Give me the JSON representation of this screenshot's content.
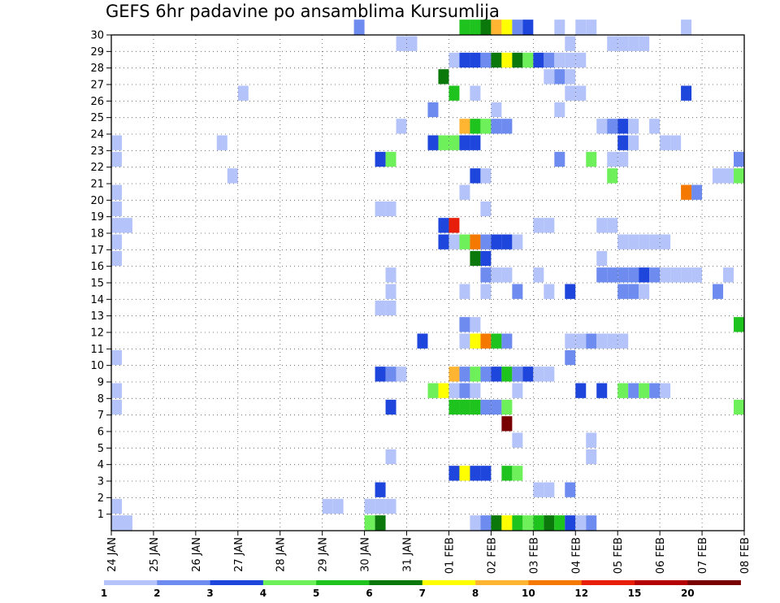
{
  "title": "GEFS 6hr padavine po ansamblima Kursumlija",
  "chart_data": {
    "type": "heatmap",
    "title": "GEFS 6hr padavine po ansamblima Kursumlija",
    "xlabel": "",
    "ylabel": "",
    "x_tick_labels": [
      "24 JAN",
      "25 JAN",
      "26 JAN",
      "27 JAN",
      "28 JAN",
      "29 JAN",
      "30 JAN",
      "31 JAN",
      "01 FEB",
      "02 FEB",
      "03 FEB",
      "04 FEB",
      "05 FEB",
      "06 FEB",
      "07 FEB",
      "08 FEB"
    ],
    "x_range_days": [
      0,
      15
    ],
    "x_step_days": 0.25,
    "y_tick_labels": [
      "1",
      "2",
      "3",
      "4",
      "5",
      "6",
      "7",
      "8",
      "9",
      "10",
      "11",
      "12",
      "13",
      "14",
      "15",
      "16",
      "17",
      "18",
      "19",
      "20",
      "21",
      "22",
      "23",
      "24",
      "25",
      "26",
      "27",
      "28",
      "29",
      "30"
    ],
    "y_range": [
      0,
      30
    ],
    "grid": true,
    "colorbar": {
      "bounds": [
        1,
        2,
        3,
        4,
        5,
        6,
        7,
        8,
        10,
        12,
        15,
        20
      ],
      "labels": [
        "1",
        "2",
        "3",
        "4",
        "5",
        "6",
        "7",
        "8",
        "10",
        "12",
        "15",
        "20"
      ],
      "colors": [
        "#b4c3fa",
        "#6e8cf0",
        "#1e46dc",
        "#6ef05a",
        "#1ec31e",
        "#0a780a",
        "#ffff00",
        "#ffb432",
        "#f57800",
        "#e61e0a",
        "#b40000",
        "#780000"
      ]
    },
    "cells": [
      [
        30,
        5.75,
        1
      ],
      [
        30,
        8.25,
        4
      ],
      [
        30,
        8.5,
        4
      ],
      [
        30,
        8.75,
        5
      ],
      [
        30,
        9.0,
        7
      ],
      [
        30,
        9.25,
        6
      ],
      [
        30,
        9.5,
        1
      ],
      [
        30,
        9.75,
        2
      ],
      [
        30,
        10.5,
        0
      ],
      [
        30,
        11.0,
        0
      ],
      [
        30,
        11.25,
        0
      ],
      [
        30,
        13.5,
        0
      ],
      [
        29,
        6.75,
        0
      ],
      [
        29,
        7.0,
        0
      ],
      [
        29,
        10.75,
        0
      ],
      [
        29,
        11.75,
        0
      ],
      [
        29,
        12.0,
        0
      ],
      [
        29,
        12.25,
        0
      ],
      [
        29,
        12.5,
        0
      ],
      [
        28,
        8.0,
        0
      ],
      [
        28,
        8.25,
        2
      ],
      [
        28,
        8.5,
        2
      ],
      [
        28,
        8.75,
        1
      ],
      [
        28,
        9.0,
        5
      ],
      [
        28,
        9.25,
        6
      ],
      [
        28,
        9.5,
        5
      ],
      [
        28,
        9.75,
        3
      ],
      [
        28,
        10.0,
        2
      ],
      [
        28,
        10.25,
        1
      ],
      [
        28,
        10.5,
        0
      ],
      [
        28,
        10.75,
        0
      ],
      [
        28,
        11.0,
        0
      ],
      [
        27,
        7.75,
        5
      ],
      [
        27,
        10.25,
        0
      ],
      [
        27,
        10.5,
        1
      ],
      [
        27,
        10.75,
        0
      ],
      [
        26,
        3.0,
        0
      ],
      [
        26,
        8.0,
        4
      ],
      [
        26,
        8.5,
        0
      ],
      [
        26,
        10.75,
        0
      ],
      [
        26,
        11.0,
        0
      ],
      [
        26,
        13.5,
        2
      ],
      [
        25,
        7.5,
        1
      ],
      [
        25,
        9.0,
        0
      ],
      [
        25,
        10.5,
        0
      ],
      [
        24,
        6.75,
        0
      ],
      [
        24,
        8.25,
        7
      ],
      [
        24,
        8.5,
        4
      ],
      [
        24,
        8.75,
        3
      ],
      [
        24,
        9.0,
        1
      ],
      [
        24,
        9.25,
        1
      ],
      [
        24,
        11.5,
        0
      ],
      [
        24,
        11.75,
        1
      ],
      [
        24,
        12.0,
        2
      ],
      [
        24,
        12.25,
        0
      ],
      [
        24,
        12.75,
        0
      ],
      [
        23,
        0.0,
        0
      ],
      [
        23,
        2.5,
        0
      ],
      [
        23,
        7.5,
        2
      ],
      [
        23,
        7.75,
        3
      ],
      [
        23,
        8.0,
        3
      ],
      [
        23,
        8.25,
        2
      ],
      [
        23,
        8.5,
        2
      ],
      [
        23,
        12.0,
        2
      ],
      [
        23,
        12.25,
        0
      ],
      [
        23,
        13.0,
        0
      ],
      [
        23,
        13.25,
        0
      ],
      [
        22,
        0.0,
        0
      ],
      [
        22,
        6.25,
        2
      ],
      [
        22,
        6.5,
        3
      ],
      [
        22,
        10.5,
        1
      ],
      [
        22,
        11.25,
        3
      ],
      [
        22,
        11.75,
        0
      ],
      [
        22,
        12.0,
        0
      ],
      [
        22,
        14.75,
        1
      ],
      [
        22,
        15.0,
        0
      ],
      [
        21,
        2.75,
        0
      ],
      [
        21,
        8.5,
        2
      ],
      [
        21,
        8.75,
        0
      ],
      [
        21,
        11.75,
        3
      ],
      [
        21,
        14.25,
        0
      ],
      [
        21,
        14.5,
        0
      ],
      [
        21,
        14.75,
        3
      ],
      [
        21,
        15.0,
        2
      ],
      [
        20,
        0.0,
        0
      ],
      [
        20,
        8.25,
        0
      ],
      [
        20,
        13.5,
        8
      ],
      [
        20,
        13.75,
        1
      ],
      [
        19,
        0.0,
        0
      ],
      [
        19,
        6.25,
        0
      ],
      [
        19,
        6.5,
        0
      ],
      [
        19,
        8.75,
        0
      ],
      [
        18,
        0.0,
        0
      ],
      [
        18,
        0.25,
        0
      ],
      [
        18,
        7.75,
        2
      ],
      [
        18,
        8.0,
        9
      ],
      [
        18,
        10.0,
        0
      ],
      [
        18,
        10.25,
        0
      ],
      [
        18,
        11.5,
        0
      ],
      [
        18,
        11.75,
        0
      ],
      [
        17,
        0.0,
        0
      ],
      [
        17,
        7.75,
        2
      ],
      [
        17,
        8.0,
        0
      ],
      [
        17,
        8.25,
        3
      ],
      [
        17,
        8.5,
        8
      ],
      [
        17,
        8.75,
        1
      ],
      [
        17,
        9.0,
        2
      ],
      [
        17,
        9.25,
        2
      ],
      [
        17,
        9.5,
        0
      ],
      [
        17,
        12.0,
        0
      ],
      [
        17,
        12.25,
        0
      ],
      [
        17,
        12.5,
        0
      ],
      [
        17,
        12.75,
        0
      ],
      [
        17,
        13.0,
        0
      ],
      [
        17,
        15.0,
        0
      ],
      [
        16,
        0.0,
        0
      ],
      [
        16,
        8.5,
        5
      ],
      [
        16,
        8.75,
        2
      ],
      [
        16,
        11.5,
        0
      ],
      [
        15,
        6.5,
        0
      ],
      [
        15,
        8.75,
        1
      ],
      [
        15,
        9.0,
        0
      ],
      [
        15,
        9.25,
        0
      ],
      [
        15,
        10.0,
        0
      ],
      [
        15,
        11.5,
        1
      ],
      [
        15,
        11.75,
        1
      ],
      [
        15,
        12.0,
        1
      ],
      [
        15,
        12.25,
        1
      ],
      [
        15,
        12.5,
        2
      ],
      [
        15,
        12.75,
        1
      ],
      [
        15,
        13.0,
        0
      ],
      [
        15,
        13.25,
        0
      ],
      [
        15,
        13.5,
        0
      ],
      [
        15,
        13.75,
        0
      ],
      [
        15,
        14.5,
        0
      ],
      [
        14,
        6.5,
        0
      ],
      [
        14,
        8.25,
        0
      ],
      [
        14,
        8.75,
        0
      ],
      [
        14,
        9.5,
        1
      ],
      [
        14,
        10.25,
        0
      ],
      [
        14,
        10.75,
        2
      ],
      [
        14,
        12.0,
        1
      ],
      [
        14,
        12.25,
        1
      ],
      [
        14,
        12.5,
        0
      ],
      [
        14,
        14.25,
        1
      ],
      [
        13,
        6.25,
        0
      ],
      [
        13,
        6.5,
        0
      ],
      [
        12,
        8.25,
        1
      ],
      [
        12,
        8.5,
        0
      ],
      [
        12,
        14.75,
        4
      ],
      [
        12,
        15.0,
        3
      ],
      [
        11,
        7.25,
        2
      ],
      [
        11,
        8.25,
        0
      ],
      [
        11,
        8.5,
        6
      ],
      [
        11,
        8.75,
        8
      ],
      [
        11,
        9.0,
        4
      ],
      [
        11,
        9.25,
        1
      ],
      [
        11,
        10.75,
        0
      ],
      [
        11,
        11.0,
        0
      ],
      [
        11,
        11.25,
        1
      ],
      [
        11,
        11.5,
        0
      ],
      [
        11,
        11.75,
        0
      ],
      [
        11,
        12.0,
        0
      ],
      [
        10,
        0.0,
        0
      ],
      [
        10,
        10.75,
        1
      ],
      [
        9,
        6.25,
        2
      ],
      [
        9,
        6.5,
        1
      ],
      [
        9,
        6.75,
        0
      ],
      [
        9,
        8.0,
        7
      ],
      [
        9,
        8.25,
        1
      ],
      [
        9,
        8.5,
        3
      ],
      [
        9,
        8.75,
        1
      ],
      [
        9,
        9.0,
        2
      ],
      [
        9,
        9.25,
        4
      ],
      [
        9,
        9.5,
        1
      ],
      [
        9,
        9.75,
        2
      ],
      [
        9,
        10.0,
        0
      ],
      [
        9,
        10.25,
        0
      ],
      [
        8,
        0.0,
        0
      ],
      [
        8,
        7.5,
        3
      ],
      [
        8,
        7.75,
        6
      ],
      [
        8,
        8.0,
        0
      ],
      [
        8,
        8.25,
        1
      ],
      [
        8,
        8.5,
        0
      ],
      [
        8,
        9.5,
        0
      ],
      [
        8,
        11.0,
        2
      ],
      [
        8,
        11.5,
        2
      ],
      [
        8,
        12.0,
        3
      ],
      [
        8,
        12.25,
        1
      ],
      [
        8,
        12.5,
        3
      ],
      [
        8,
        12.75,
        1
      ],
      [
        8,
        13.0,
        0
      ],
      [
        7,
        0.0,
        0
      ],
      [
        7,
        6.5,
        2
      ],
      [
        7,
        8.0,
        4
      ],
      [
        7,
        8.25,
        4
      ],
      [
        7,
        8.5,
        4
      ],
      [
        7,
        8.75,
        1
      ],
      [
        7,
        9.0,
        1
      ],
      [
        7,
        9.25,
        3
      ],
      [
        7,
        14.75,
        3
      ],
      [
        7,
        15.0,
        0
      ],
      [
        6,
        9.25,
        11
      ],
      [
        5,
        9.5,
        0
      ],
      [
        5,
        11.25,
        0
      ],
      [
        4,
        6.5,
        0
      ],
      [
        4,
        11.25,
        0
      ],
      [
        3,
        8.0,
        2
      ],
      [
        3,
        8.25,
        6
      ],
      [
        3,
        8.5,
        2
      ],
      [
        3,
        8.75,
        2
      ],
      [
        3,
        9.25,
        4
      ],
      [
        3,
        9.5,
        3
      ],
      [
        2,
        6.25,
        2
      ],
      [
        2,
        10.0,
        0
      ],
      [
        2,
        10.25,
        0
      ],
      [
        2,
        10.75,
        1
      ],
      [
        1,
        0.0,
        0
      ],
      [
        1,
        5.0,
        0
      ],
      [
        1,
        5.25,
        0
      ],
      [
        1,
        6.0,
        0
      ],
      [
        1,
        6.25,
        0
      ],
      [
        1,
        6.5,
        0
      ],
      [
        0,
        0.0,
        0
      ],
      [
        0,
        0.25,
        0
      ],
      [
        0,
        6.0,
        3
      ],
      [
        0,
        6.25,
        5
      ],
      [
        0,
        8.5,
        0
      ],
      [
        0,
        8.75,
        1
      ],
      [
        0,
        9.0,
        5
      ],
      [
        0,
        9.25,
        6
      ],
      [
        0,
        9.5,
        4
      ],
      [
        0,
        9.75,
        3
      ],
      [
        0,
        10.0,
        4
      ],
      [
        0,
        10.25,
        5
      ],
      [
        0,
        10.5,
        4
      ],
      [
        0,
        10.75,
        2
      ],
      [
        0,
        11.0,
        0
      ],
      [
        0,
        11.25,
        1
      ]
    ]
  }
}
